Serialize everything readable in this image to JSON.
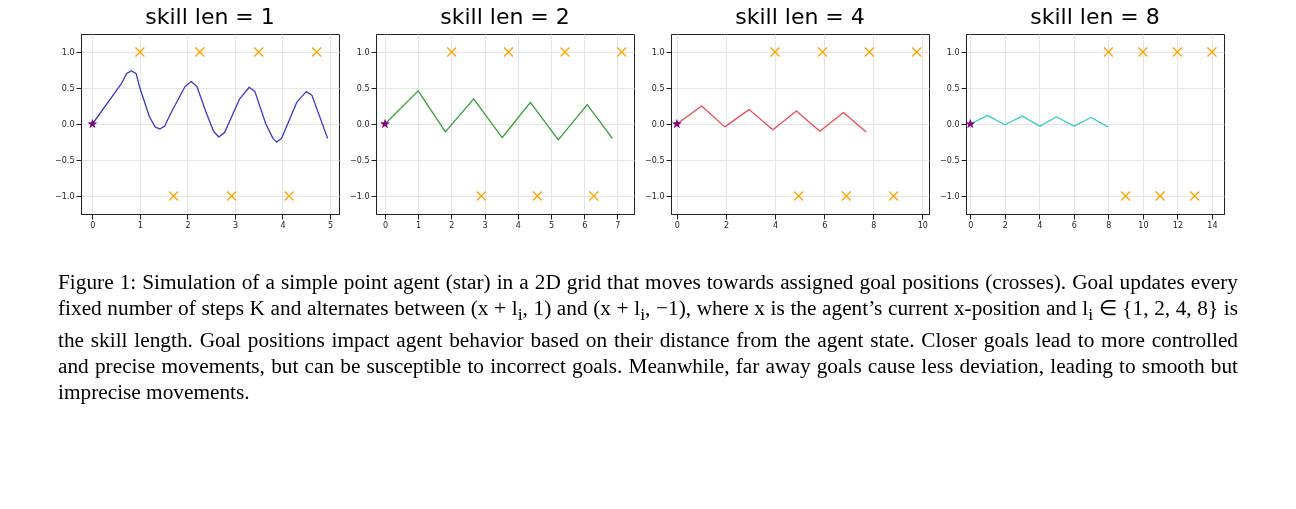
{
  "chart_data": [
    {
      "type": "line",
      "title": "skill len = 1",
      "xlim": [
        -0.24,
        5.19
      ],
      "xticks": [
        0,
        1,
        2,
        3,
        4,
        5
      ],
      "ylim": [
        -1.25,
        1.25
      ],
      "yticks": [
        {
          "value": -1,
          "label": "−1.0"
        },
        {
          "value": -0.5,
          "label": "−0.5"
        },
        {
          "value": 0,
          "label": "0.0"
        },
        {
          "value": 0.5,
          "label": "0.5"
        },
        {
          "value": 1,
          "label": "1.0"
        }
      ],
      "grid": true,
      "series": [
        {
          "type": "line",
          "color": "#3b3bbf",
          "x": [
            0,
            0.61,
            0.72,
            0.82,
            0.92,
            1.0,
            1.2,
            1.32,
            1.42,
            1.52,
            1.65,
            1.95,
            2.08,
            2.2,
            2.4,
            2.55,
            2.66,
            2.78,
            3.1,
            3.3,
            3.42,
            3.65,
            3.8,
            3.88,
            3.98,
            4.3,
            4.5,
            4.62,
            4.95
          ],
          "values": [
            0,
            0.56,
            0.7,
            0.74,
            0.7,
            0.5,
            0.1,
            -0.04,
            -0.07,
            -0.03,
            0.15,
            0.52,
            0.59,
            0.52,
            0.15,
            -0.1,
            -0.18,
            -0.12,
            0.35,
            0.51,
            0.45,
            0,
            -0.2,
            -0.25,
            -0.2,
            0.3,
            0.45,
            0.4,
            -0.2
          ]
        },
        {
          "type": "scatter",
          "marker": "cross",
          "color": "#ffa500",
          "x": [
            1.0,
            2.26,
            3.5,
            4.72,
            1.71,
            2.93,
            4.14
          ],
          "values": [
            1,
            1,
            1,
            1,
            -1,
            -1,
            -1
          ]
        },
        {
          "type": "scatter",
          "marker": "star",
          "color": "#800080",
          "x": [
            0
          ],
          "values": [
            0
          ]
        }
      ],
      "annotations": [
        "Figure 1: Simulation of a simple point agent (star) in a 2D grid that moves towards assigned goal positions (crosses). Goal updates every fixed number of steps K and alternates between (x + l$_{i}$, 1) and (x + l$_{i}$, −1), where x is the agent’s current x-position and l$_{i}$ ∈ {1, 2, 4, 8} is the skill length. Goal positions impact agent behavior based on their distance from the agent state. Closer goals lead to more controlled and precise movements, but can be susceptible to incorrect goals. Meanwhile, far away goals cause less deviation, leading to smooth but imprecise movements."
      ]
    },
    {
      "type": "line",
      "title": "skill len = 2",
      "xlim": [
        -0.27,
        7.5
      ],
      "xticks": [
        0,
        1,
        2,
        3,
        4,
        5,
        6,
        7
      ],
      "ylim": [
        -1.25,
        1.25
      ],
      "yticks": [
        {
          "value": -1,
          "label": "−1.0"
        },
        {
          "value": -0.5,
          "label": "−0.5"
        },
        {
          "value": 0,
          "label": "0.0"
        },
        {
          "value": 0.5,
          "label": "0.5"
        },
        {
          "value": 1,
          "label": "1.0"
        }
      ],
      "grid": true,
      "series": [
        {
          "type": "line",
          "color": "#3a9a3a",
          "x": [
            0,
            1.0,
            1.82,
            2.67,
            3.53,
            4.38,
            5.22,
            6.09,
            6.85
          ],
          "values": [
            0,
            0.46,
            -0.11,
            0.35,
            -0.19,
            0.3,
            -0.22,
            0.27,
            -0.2
          ]
        },
        {
          "type": "scatter",
          "marker": "cross",
          "color": "#ffa500",
          "x": [
            2.01,
            3.72,
            5.42,
            7.13,
            2.9,
            4.59,
            6.29
          ],
          "values": [
            1,
            1,
            1,
            1,
            -1,
            -1,
            -1
          ]
        },
        {
          "type": "scatter",
          "marker": "star",
          "color": "#800080",
          "x": [
            0
          ],
          "values": [
            0
          ]
        }
      ]
    },
    {
      "type": "line",
      "title": "skill len = 4",
      "xlim": [
        -0.24,
        10.27
      ],
      "xticks": [
        0,
        2,
        4,
        6,
        8,
        10
      ],
      "ylim": [
        -1.25,
        1.25
      ],
      "yticks": [
        {
          "value": -1,
          "label": "−1.0"
        },
        {
          "value": -0.5,
          "label": "−0.5"
        },
        {
          "value": 0,
          "label": "0.0"
        },
        {
          "value": 0.5,
          "label": "0.5"
        },
        {
          "value": 1,
          "label": "1.0"
        }
      ],
      "grid": true,
      "series": [
        {
          "type": "line",
          "color": "#e0505a",
          "x": [
            0,
            1.01,
            1.95,
            2.94,
            3.91,
            4.87,
            5.82,
            6.79,
            7.71
          ],
          "values": [
            0,
            0.25,
            -0.04,
            0.2,
            -0.08,
            0.18,
            -0.1,
            0.16,
            -0.11
          ]
        },
        {
          "type": "scatter",
          "marker": "cross",
          "color": "#ffa500",
          "x": [
            4.0,
            5.93,
            7.84,
            9.77,
            4.96,
            6.9,
            8.83
          ],
          "values": [
            1,
            1,
            1,
            1,
            -1,
            -1,
            -1
          ]
        },
        {
          "type": "scatter",
          "marker": "star",
          "color": "#800080",
          "x": [
            0
          ],
          "values": [
            0
          ]
        }
      ]
    },
    {
      "type": "line",
      "title": "skill len = 8",
      "xlim": [
        -0.25,
        14.7
      ],
      "xticks": [
        0,
        2,
        4,
        6,
        8,
        10,
        12,
        14
      ],
      "ylim": [
        -1.25,
        1.25
      ],
      "yticks": [
        {
          "value": -1,
          "label": "−1.0"
        },
        {
          "value": -0.5,
          "label": "−0.5"
        },
        {
          "value": 0,
          "label": "0.0"
        },
        {
          "value": 0.5,
          "label": "0.5"
        },
        {
          "value": 1,
          "label": "1.0"
        }
      ],
      "grid": true,
      "series": [
        {
          "type": "line",
          "color": "#40c8c8",
          "x": [
            0,
            1.0,
            2.0,
            3.01,
            4.03,
            4.99,
            6.01,
            6.99,
            7.98
          ],
          "values": [
            0,
            0.12,
            -0.01,
            0.11,
            -0.03,
            0.1,
            -0.03,
            0.09,
            -0.04
          ]
        },
        {
          "type": "scatter",
          "marker": "cross",
          "color": "#ffa500",
          "x": [
            8,
            10,
            12,
            14,
            9,
            11,
            13
          ],
          "values": [
            1,
            1,
            1,
            1,
            -1,
            -1,
            -1
          ]
        },
        {
          "type": "scatter",
          "marker": "star",
          "color": "#800080",
          "x": [
            0
          ],
          "values": [
            0
          ]
        }
      ]
    }
  ]
}
